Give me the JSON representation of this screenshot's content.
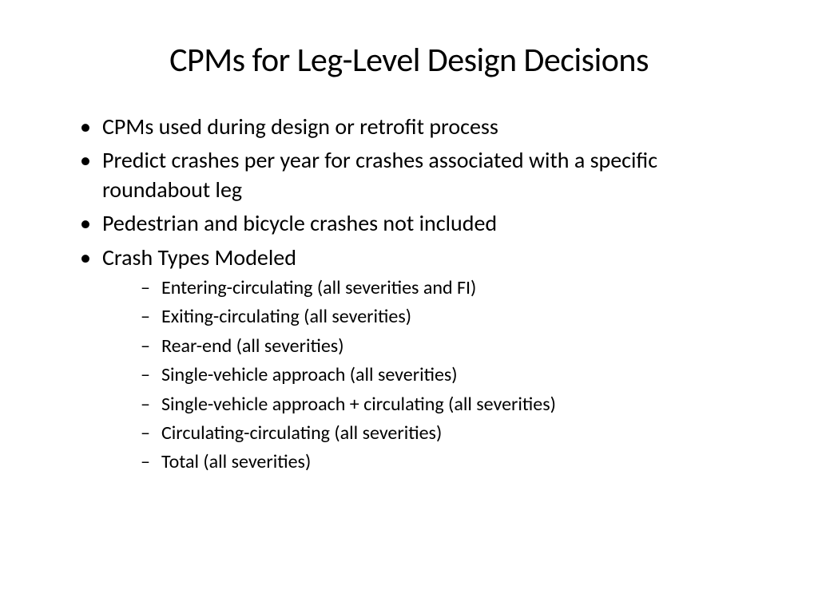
{
  "slide": {
    "title": "CPMs for Leg-Level Design Decisions",
    "bullets": [
      {
        "text": "CPMs used during design or retrofit process"
      },
      {
        "text": "Predict crashes per year for crashes associated with a specific roundabout leg"
      },
      {
        "text": "Pedestrian and bicycle crashes not included"
      },
      {
        "text": "Crash Types Modeled",
        "sub": [
          "Entering-circulating (all severities and FI)",
          "Exiting-circulating (all severities)",
          "Rear-end (all severities)",
          "Single-vehicle approach (all severities)",
          "Single-vehicle approach + circulating (all severities)",
          "Circulating-circulating (all severities)",
          "Total (all severities)"
        ]
      }
    ],
    "background_color": "#ffffff",
    "text_color": "#000000",
    "title_fontsize": 42,
    "bullet_fontsize": 28,
    "sub_bullet_fontsize": 24
  }
}
